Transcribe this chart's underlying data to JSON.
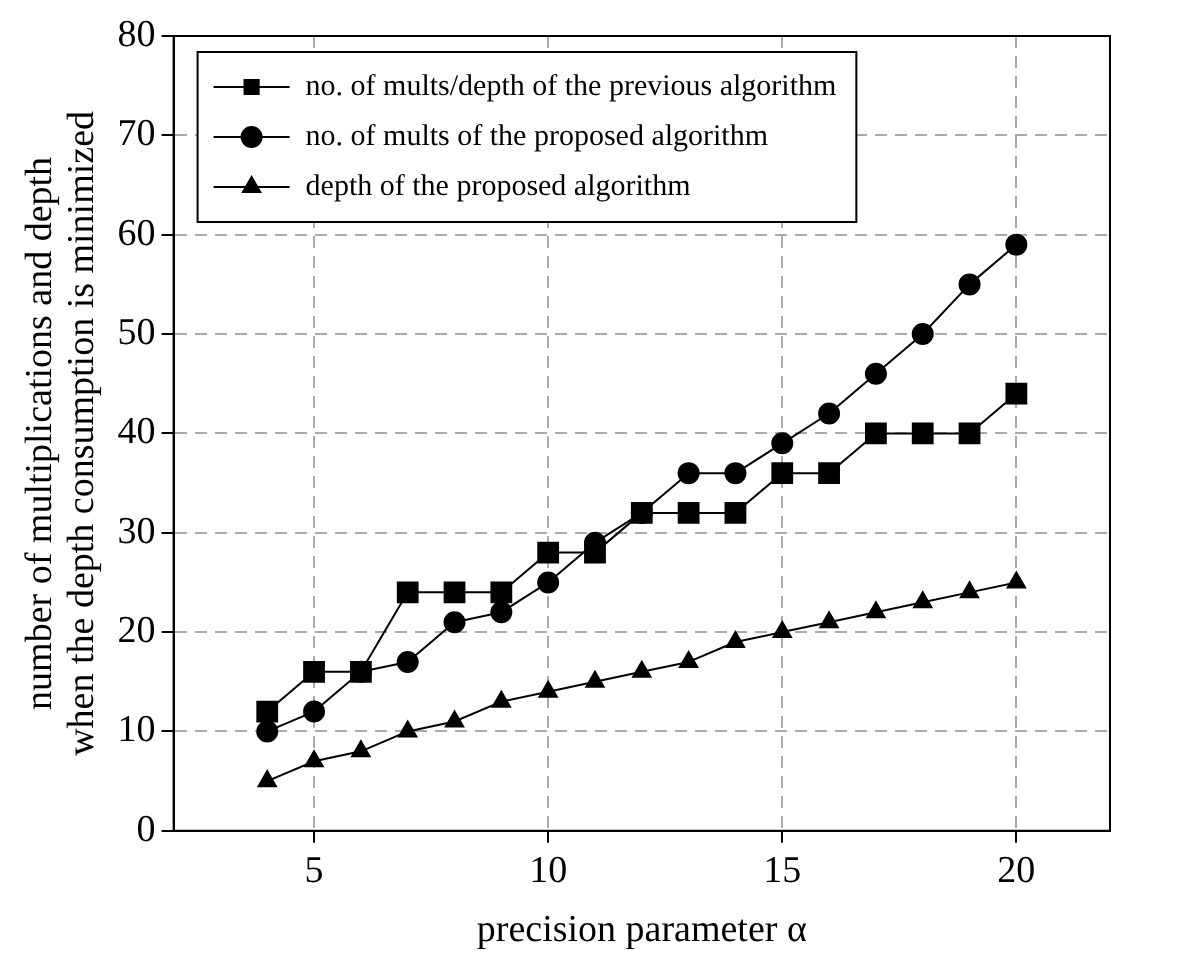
{
  "chart_data": {
    "type": "line",
    "xlabel": "precision parameter α",
    "ylabel": "number of multiplications and depth\nwhen the depth consumption is minimized",
    "x": [
      4,
      5,
      6,
      7,
      8,
      9,
      10,
      11,
      12,
      13,
      14,
      15,
      16,
      17,
      18,
      19,
      20
    ],
    "series": [
      {
        "name": "no. of mults/depth of the previous algorithm",
        "color": "#000000",
        "marker": "square",
        "values": [
          12,
          16,
          16,
          24,
          24,
          24,
          28,
          28,
          32,
          32,
          32,
          36,
          36,
          40,
          40,
          40,
          44
        ]
      },
      {
        "name": "no. of mults of the proposed algorithm",
        "color": "#000000",
        "marker": "circle",
        "values": [
          10,
          12,
          16,
          17,
          21,
          22,
          25,
          29,
          32,
          36,
          36,
          39,
          42,
          46,
          50,
          55,
          59
        ]
      },
      {
        "name": "depth of the proposed algorithm",
        "color": "#000000",
        "marker": "triangle",
        "values": [
          5,
          7,
          8,
          10,
          11,
          13,
          14,
          15,
          16,
          17,
          19,
          20,
          21,
          22,
          23,
          24,
          25
        ]
      }
    ],
    "xlim": [
      2,
      22
    ],
    "xticks": [
      5,
      10,
      15,
      20
    ],
    "ylim": [
      0,
      80
    ],
    "yticks": [
      0,
      10,
      20,
      30,
      40,
      50,
      60,
      70,
      80
    ],
    "grid": true,
    "legend": "top left",
    "line_style": "solid"
  }
}
